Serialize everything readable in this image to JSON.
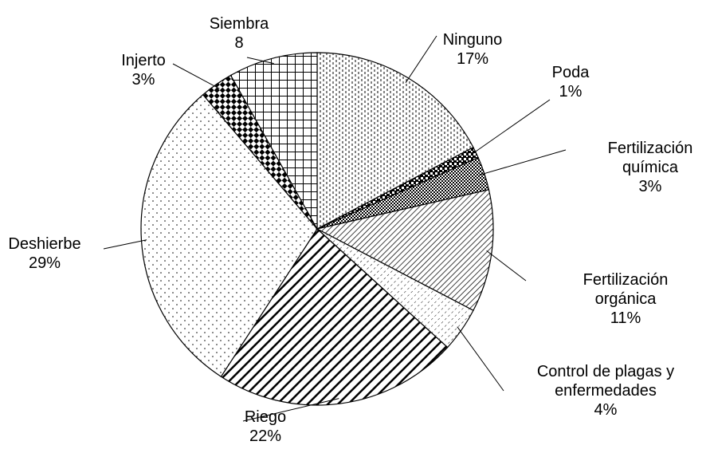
{
  "chart_data": {
    "type": "pie",
    "categories": [
      "Ninguno",
      "Poda",
      "Fertilización química",
      "Fertilización orgánica",
      "Control de plagas y enfermedades",
      "Riego",
      "Deshierbe",
      "Injerto",
      "Siembra"
    ],
    "values": [
      17,
      1,
      3,
      11,
      4,
      22,
      29,
      3,
      8
    ],
    "value_labels": [
      "17%",
      "1%",
      "3%",
      "11%",
      "4%",
      "22%",
      "29%",
      "3%",
      "8"
    ]
  }
}
